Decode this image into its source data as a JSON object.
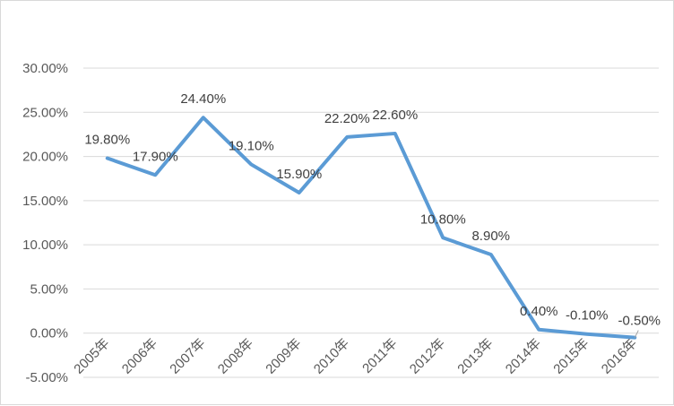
{
  "chart_data": {
    "type": "line",
    "title": "",
    "xlabel": "",
    "ylabel": "",
    "categories": [
      "2005年",
      "2006年",
      "2007年",
      "2008年",
      "2009年",
      "2010年",
      "2011年",
      "2012年",
      "2013年",
      "2014年",
      "2015年",
      "2016年"
    ],
    "series": [
      {
        "values": [
          19.8,
          17.9,
          24.4,
          19.1,
          15.9,
          22.2,
          22.6,
          10.8,
          8.9,
          0.4,
          -0.1,
          -0.5
        ],
        "data_labels": [
          "19.80%",
          "17.90%",
          "24.40%",
          "19.10%",
          "15.90%",
          "22.20%",
          "22.60%",
          "10.80%",
          "8.90%",
          "0.40%",
          "-0.10%",
          "-0.50%"
        ],
        "color": "#5b9bd5"
      }
    ],
    "ylim": [
      -5,
      30
    ],
    "y_ticks": [
      30,
      25,
      20,
      15,
      10,
      5,
      0,
      -5
    ],
    "y_tick_labels": [
      "30.00%",
      "25.00%",
      "20.00%",
      "15.00%",
      "10.00%",
      "5.00%",
      "0.00%",
      "-5.00%"
    ],
    "grid": true,
    "legend": "none"
  }
}
